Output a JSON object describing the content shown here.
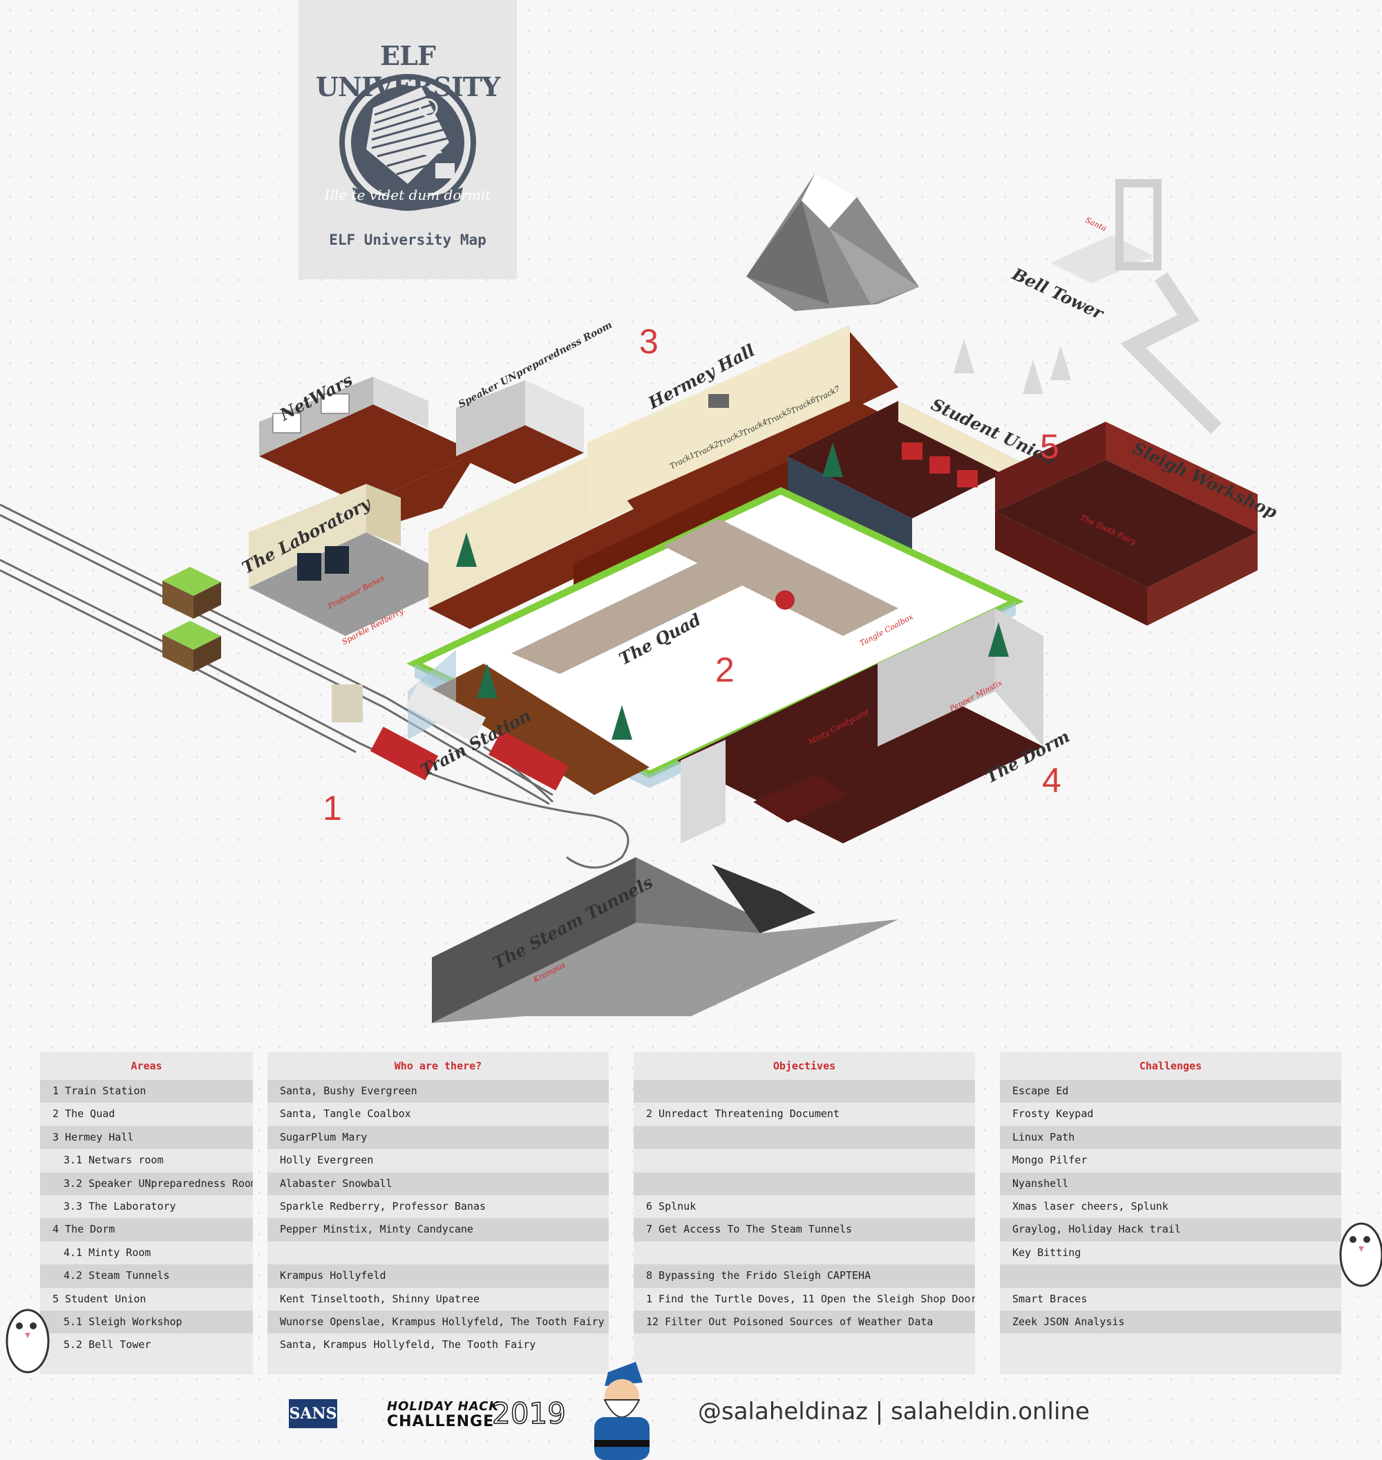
{
  "logo": {
    "title": "ELF UNIVERSITY",
    "motto": "Ille te videt dum dormit",
    "subtitle": "ELF University Map"
  },
  "map_labels": {
    "train_station": "Train Station",
    "the_quad": "The Quad",
    "hermey_hall": "Hermey Hall",
    "netwars": "NetWars",
    "speaker_room": "Speaker UNpreparedness Room",
    "the_laboratory": "The Laboratory",
    "the_dorm": "The Dorm",
    "student_union": "Student Union",
    "sleigh_workshop": "Sleigh Workshop",
    "bell_tower": "Bell Tower",
    "steam_tunnels": "The Steam Tunnels",
    "tracks": [
      "Track1",
      "Track2",
      "Track3",
      "Track4",
      "Track5",
      "Track6",
      "Track7"
    ]
  },
  "area_numbers": [
    "1",
    "2",
    "3",
    "4",
    "5"
  ],
  "npc_labels": {
    "professor_banas": "Professor Banas",
    "sparkle_redberry": "Sparkle Redberry",
    "tangle_coalbox": "Tangle Coalbox",
    "minty_candycane": "Minty Candycane",
    "pepper_minstix": "Pepper Minstix",
    "the_tooth_fairy": "The Tooth Fairy",
    "krampus": "Krampus",
    "santa": "Santa"
  },
  "tables": {
    "areas": {
      "title": "Areas",
      "rows": [
        "1 Train Station",
        "2 The Quad",
        "3 Hermey Hall",
        "3.1 Netwars room",
        "3.2 Speaker UNpreparedness Room",
        "3.3 The Laboratory",
        "4 The Dorm",
        "4.1 Minty Room",
        "4.2 Steam Tunnels",
        "5 Student Union",
        "5.1 Sleigh Workshop",
        "5.2 Bell Tower"
      ]
    },
    "who": {
      "title": "Who are there?",
      "rows": [
        "Santa, Bushy Evergreen",
        "Santa, Tangle Coalbox",
        "SugarPlum Mary",
        "Holly Evergreen",
        "Alabaster Snowball",
        "Sparkle Redberry, Professor Banas",
        "Pepper Minstix, Minty Candycane",
        "",
        "Krampus Hollyfeld",
        "Kent Tinseltooth, Shinny Upatree",
        "Wunorse Openslae, Krampus Hollyfeld, The Tooth Fairy",
        "Santa, Krampus Hollyfeld, The Tooth Fairy"
      ]
    },
    "objectives": {
      "title": "Objectives",
      "rows": [
        "",
        "2 Unredact Threatening Document",
        "",
        "",
        "",
        "6 Splnuk",
        "7 Get Access To The Steam Tunnels",
        "",
        "8 Bypassing the Frido Sleigh CAPTEHA",
        "1 Find the Turtle Doves, 11 Open the Sleigh Shop Door",
        "12 Filter Out Poisoned Sources of Weather Data",
        ""
      ]
    },
    "challenges": {
      "title": "Challenges",
      "rows": [
        "Escape Ed",
        "Frosty Keypad",
        "Linux Path",
        "Mongo Pilfer",
        "Nyanshell",
        "Xmas laser cheers, Splunk",
        "Graylog, Holiday Hack trail",
        "Key Bitting",
        "",
        "Smart Braces",
        "Zeek JSON Analysis",
        ""
      ]
    }
  },
  "footer": {
    "sans": "SANS",
    "hhc_line1": "HOLIDAY HACK",
    "hhc_line2": "CHALLENGE",
    "hhc_year": "2019",
    "handle": "@salaheldinaz | salaheldin.online"
  },
  "colors": {
    "accent_red": "#d63c3c",
    "panel_bg": "#e9e9ea",
    "panel_alt": "#d4d4d5",
    "floor_brown": "#7a2a14",
    "wall_beige": "#efe6c8",
    "grass_green": "#7fce3a"
  }
}
